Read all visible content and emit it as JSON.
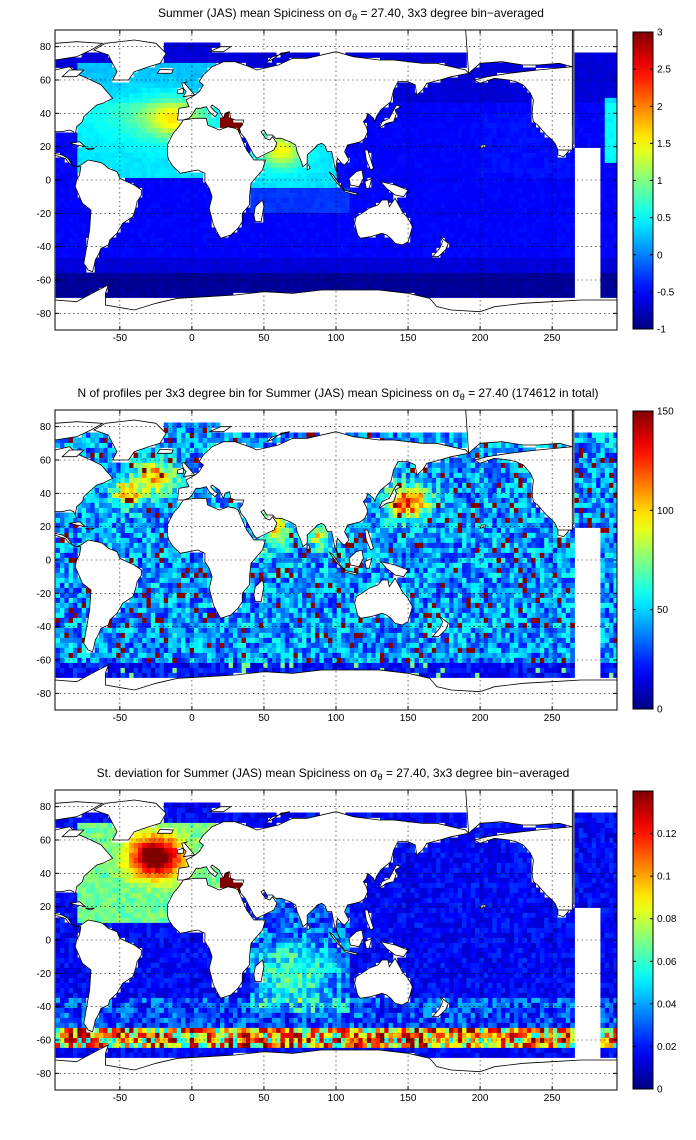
{
  "chart_data": [
    {
      "type": "heatmap",
      "id": "mean",
      "title_pre": "Summer (JAS) mean Spiciness on ",
      "title_sigma": "σ",
      "title_sub": "θ",
      "title_post": " = 27.40, 3x3 degree bin−averaged",
      "xlim": [
        -95,
        295
      ],
      "ylim": [
        -90,
        90
      ],
      "xticks": [
        -50,
        0,
        50,
        100,
        150,
        200,
        250
      ],
      "yticks": [
        -80,
        -60,
        -40,
        -20,
        0,
        20,
        40,
        60,
        80
      ],
      "grid": true,
      "colormap": "jet",
      "clim": [
        -1,
        3
      ],
      "colorbar_ticks": [
        "-1",
        "-0.5",
        "0",
        "0.5",
        "1",
        "1.5",
        "2",
        "2.5",
        "3"
      ],
      "colorbar_values": [
        -1,
        -0.5,
        0,
        0.5,
        1,
        1.5,
        2,
        2.5,
        3
      ],
      "field": "spice"
    },
    {
      "type": "heatmap",
      "id": "count",
      "title_pre": "N of profiles per 3x3 degree bin for Summer (JAS) mean Spiciness on ",
      "title_sigma": "σ",
      "title_sub": "θ",
      "title_post": " = 27.40 (174612 in total)",
      "xlim": [
        -95,
        295
      ],
      "ylim": [
        -90,
        90
      ],
      "xticks": [
        -50,
        0,
        50,
        100,
        150,
        200,
        250
      ],
      "yticks": [
        -80,
        -60,
        -40,
        -20,
        0,
        20,
        40,
        60,
        80
      ],
      "grid": true,
      "colormap": "jet",
      "clim": [
        0,
        150
      ],
      "colorbar_ticks": [
        "0",
        "50",
        "100",
        "150"
      ],
      "colorbar_values": [
        0,
        50,
        100,
        150
      ],
      "total_profiles": 174612,
      "field": "count"
    },
    {
      "type": "heatmap",
      "id": "std",
      "title_pre": "St. deviation for Summer (JAS) mean Spiciness on ",
      "title_sigma": "σ",
      "title_sub": "θ",
      "title_post": " = 27.40, 3x3 degree bin−averaged",
      "xlim": [
        -95,
        295
      ],
      "ylim": [
        -90,
        90
      ],
      "xticks": [
        -50,
        0,
        50,
        100,
        150,
        200,
        250
      ],
      "yticks": [
        -80,
        -60,
        -40,
        -20,
        0,
        20,
        40,
        60,
        80
      ],
      "grid": true,
      "colormap": "jet",
      "clim": [
        0,
        0.14
      ],
      "colorbar_ticks": [
        "0",
        "0.02",
        "0.04",
        "0.06",
        "0.08",
        "0.1",
        "0.12"
      ],
      "colorbar_values": [
        0,
        0.02,
        0.04,
        0.06,
        0.08,
        0.1,
        0.12
      ],
      "field": "std"
    }
  ]
}
